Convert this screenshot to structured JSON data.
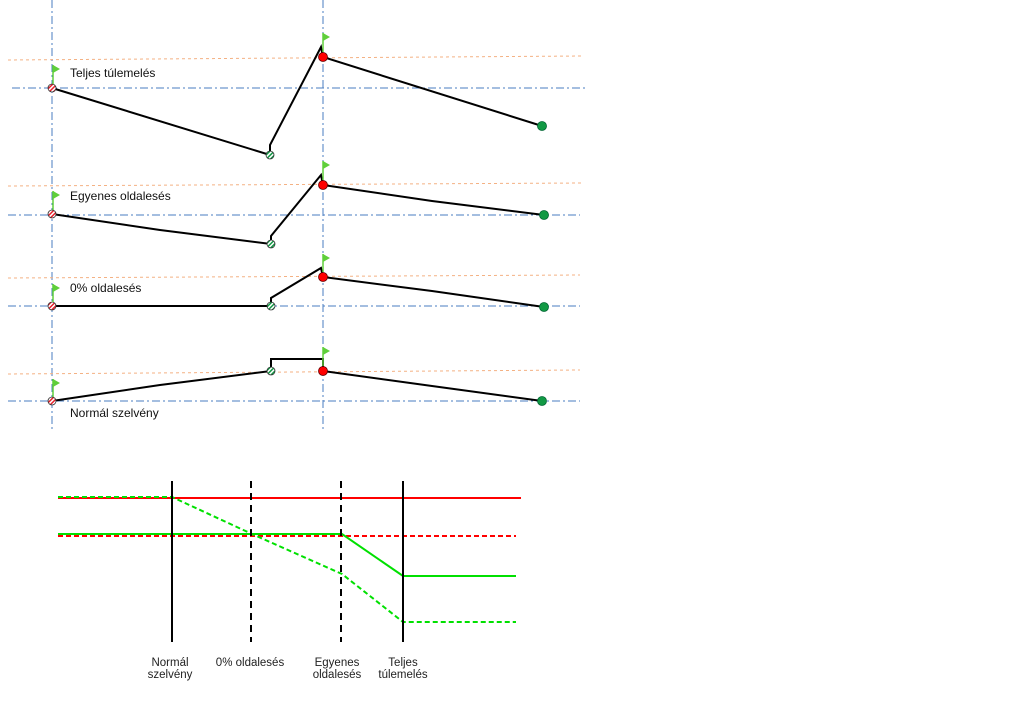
{
  "colors": {
    "reference_axis": "#4a7cc0",
    "design_line": "#f4b183",
    "profile": "#000000",
    "start_node": "#e8202a",
    "end_node": "#119944",
    "flag": "#5fcf3a",
    "red_series": "#ff0000",
    "green_series": "#00e000"
  },
  "cross_sections": [
    {
      "label": "Teljes túlemelés"
    },
    {
      "label": "Egyenes oldalesés"
    },
    {
      "label": "0% oldalesés"
    },
    {
      "label": "Normál szelvény"
    }
  ],
  "transition": {
    "stations": [
      {
        "line1": "Normál",
        "line2": "szelvény",
        "style": "solid"
      },
      {
        "line1": "0% oldalesés",
        "line2": "",
        "style": "dashed"
      },
      {
        "line1": "Egyenes",
        "line2": "oldalesés",
        "style": "dashed"
      },
      {
        "line1": "Teljes",
        "line2": "túlemelés",
        "style": "solid"
      }
    ]
  }
}
